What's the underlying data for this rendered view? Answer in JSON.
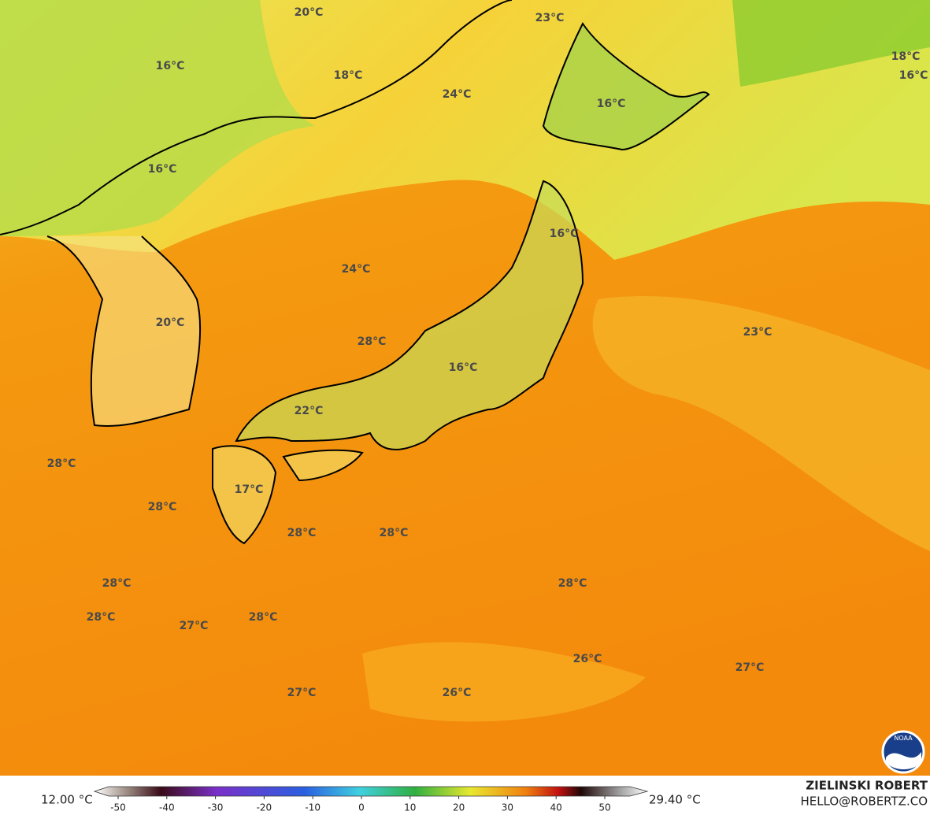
{
  "map": {
    "labels": [
      "20°C",
      "23°C",
      "16°C",
      "18°C",
      "24°C",
      "18°C",
      "16°C",
      "16°C",
      "16°C",
      "16°C",
      "24°C",
      "23°C",
      "20°C",
      "28°C",
      "16°C",
      "22°C",
      "28°C",
      "28°C",
      "17°C",
      "28°C",
      "28°C",
      "28°C",
      "28°C",
      "28°C",
      "27°C",
      "28°C",
      "26°C",
      "27°C",
      "27°C",
      "26°C"
    ]
  },
  "colorbar": {
    "min_label": "12.00 °C",
    "max_label": "29.40 °C",
    "ticks": [
      -50,
      -40,
      -30,
      -20,
      -10,
      0,
      10,
      20,
      30,
      40,
      50
    ]
  },
  "credit": {
    "name": "ZIELINSKI ROBERT",
    "contact": "HELLO@ROBERTZ.CO",
    "logo": "NOAA"
  }
}
